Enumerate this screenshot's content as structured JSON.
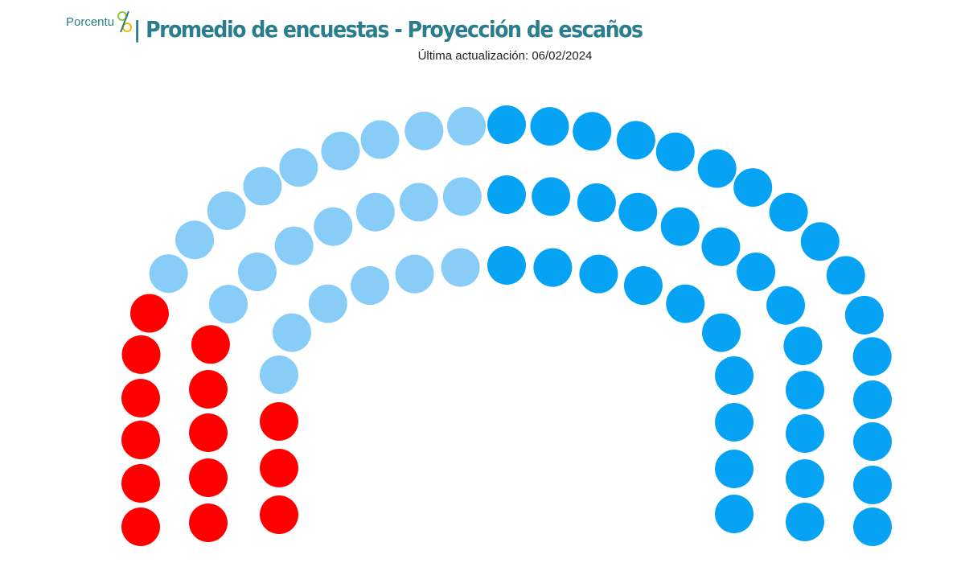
{
  "logo": "Porcentu",
  "chart_data": {
    "type": "parliament",
    "title": "| Promedio de encuestas - Proyección de escaños",
    "subtitle": "Última actualización: 06/02/2024",
    "categories": [
      null,
      null,
      null
    ],
    "values": [
      14,
      22,
      39
    ],
    "colors": [
      "#ff0000",
      "#87cdf7",
      "#06a3f5"
    ]
  }
}
